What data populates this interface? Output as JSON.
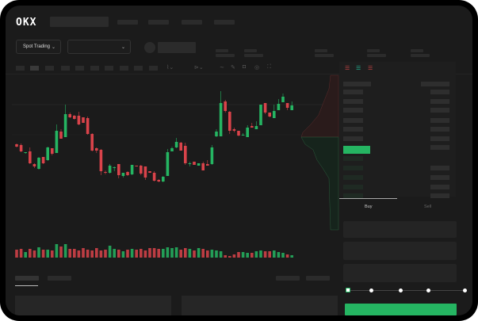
{
  "header": {
    "logo": "OKX"
  },
  "toolbar": {
    "market_select": "Spot Trading",
    "pair_select": ""
  },
  "orderbook": {
    "view_icons": [
      "buy-sell-book-icon",
      "buy-book-icon",
      "sell-book-icon"
    ]
  },
  "trade_form": {
    "tabs": [
      {
        "label": "Buy",
        "active": true
      },
      {
        "label": "Sell",
        "active": false
      }
    ],
    "slider_percent": 0,
    "slider_stops": 5,
    "accent": "#25b562"
  },
  "colors": {
    "up": "#25b562",
    "down": "#d9434a",
    "background": "#1b1b1b"
  },
  "chart_data": {
    "type": "candlestick",
    "ohlc_order": [
      "open",
      "close",
      "high",
      "low"
    ],
    "candles": [
      [
        68,
        65,
        69,
        64
      ],
      [
        67,
        59,
        69,
        58
      ],
      [
        57,
        58,
        58,
        56
      ],
      [
        59,
        44,
        64,
        43
      ],
      [
        43,
        40,
        44,
        38
      ],
      [
        37,
        51,
        52,
        36
      ],
      [
        52,
        44,
        52,
        43
      ],
      [
        48,
        64,
        65,
        47
      ],
      [
        63,
        56,
        63,
        54
      ],
      [
        57,
        85,
        93,
        57
      ],
      [
        84,
        75,
        87,
        75
      ],
      [
        77,
        106,
        118,
        77
      ],
      [
        106,
        102,
        108,
        101
      ],
      [
        104,
        100,
        105,
        99
      ],
      [
        104,
        93,
        109,
        92
      ],
      [
        102,
        95,
        102,
        95
      ],
      [
        101,
        81,
        103,
        80
      ],
      [
        81,
        60,
        82,
        59
      ],
      [
        63,
        60,
        64,
        57
      ],
      [
        61,
        34,
        62,
        29
      ],
      [
        33,
        32,
        35,
        30
      ],
      [
        32,
        41,
        43,
        31
      ],
      [
        38,
        39,
        40,
        34
      ],
      [
        43,
        29,
        43,
        25
      ],
      [
        28,
        32,
        32,
        26
      ],
      [
        33,
        29,
        34,
        28
      ],
      [
        30,
        42,
        42,
        29
      ],
      [
        41,
        40,
        41,
        40
      ],
      [
        41,
        31,
        42,
        29
      ],
      [
        40,
        26,
        40,
        23
      ],
      [
        34,
        32,
        34,
        32
      ],
      [
        32,
        22,
        34,
        21
      ],
      [
        23,
        21,
        24,
        20
      ],
      [
        21,
        27,
        28,
        20
      ],
      [
        28,
        58,
        62,
        28
      ],
      [
        59,
        63,
        65,
        59
      ],
      [
        64,
        71,
        76,
        63
      ],
      [
        70,
        60,
        71,
        60
      ],
      [
        66,
        44,
        70,
        42
      ],
      [
        43,
        44,
        46,
        40
      ],
      [
        46,
        42,
        46,
        42
      ],
      [
        41,
        44,
        44,
        41
      ],
      [
        44,
        35,
        46,
        35
      ],
      [
        43,
        41,
        48,
        41
      ],
      [
        43,
        64,
        67,
        42
      ],
      [
        78,
        84,
        87,
        77
      ],
      [
        78,
        120,
        135,
        78
      ],
      [
        122,
        110,
        124,
        108
      ],
      [
        109,
        85,
        110,
        81
      ],
      [
        87,
        85,
        89,
        83
      ],
      [
        85,
        79,
        85,
        78
      ],
      [
        80,
        80,
        82,
        79
      ],
      [
        77,
        89,
        92,
        77
      ],
      [
        91,
        89,
        95,
        89
      ],
      [
        87,
        91,
        97,
        87
      ],
      [
        92,
        118,
        118,
        92
      ],
      [
        120,
        108,
        120,
        106
      ],
      [
        108,
        103,
        108,
        102
      ],
      [
        101,
        110,
        118,
        101
      ],
      [
        111,
        119,
        125,
        111
      ],
      [
        121,
        128,
        132,
        121
      ],
      [
        120,
        114,
        120,
        111
      ],
      [
        111,
        117,
        122,
        111
      ]
    ],
    "volumes": [
      10,
      11,
      7,
      11,
      9,
      13,
      10,
      10,
      9,
      17,
      14,
      17,
      11,
      11,
      9,
      12,
      10,
      9,
      12,
      9,
      10,
      15,
      11,
      10,
      8,
      10,
      11,
      10,
      11,
      9,
      12,
      12,
      11,
      11,
      13,
      12,
      13,
      10,
      12,
      11,
      9,
      12,
      11,
      9,
      10,
      9,
      8,
      3,
      2,
      4,
      7,
      7,
      6,
      6,
      8,
      9,
      8,
      8,
      9,
      7,
      6,
      4,
      3
    ],
    "xlabel": "",
    "ylabel": ""
  }
}
